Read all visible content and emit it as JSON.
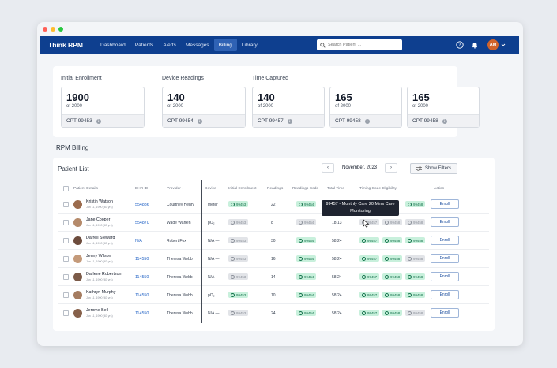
{
  "app": {
    "brand": "Think RPM",
    "nav": [
      "Dashboard",
      "Patients",
      "Alerts",
      "Messages",
      "Billing",
      "Library"
    ],
    "active_nav": "Billing",
    "search_placeholder": "Search Patient ...",
    "user_initials": "AM",
    "icons": [
      "help-icon",
      "bell-icon",
      "chevron-down-icon"
    ]
  },
  "summary": {
    "groups": [
      "Initial Enrollment",
      "Device Readings",
      "Time Captured"
    ],
    "cards": [
      {
        "value": "1900",
        "sub": "of 2000",
        "cpt": "CPT 99453"
      },
      {
        "value": "140",
        "sub": "of 2000",
        "cpt": "CPT 99454"
      },
      {
        "value": "140",
        "sub": "of 2000",
        "cpt": "CPT 99457"
      },
      {
        "value": "165",
        "sub": "of 2000",
        "cpt": "CPT 99458"
      },
      {
        "value": "165",
        "sub": "of 2000",
        "cpt": "CPT 99458"
      }
    ],
    "info_glyph": "i"
  },
  "billing": {
    "section_title": "RPM Billing",
    "list_title": "Patient List",
    "month": "November, 2023",
    "prev": "‹",
    "next": "›",
    "show_filters": "Show Filters",
    "columns": [
      "Patient Details",
      "EHR ID",
      "Provider",
      "Device",
      "Initial Enrollment",
      "Readings",
      "Readings Code",
      "Total Time",
      "Timing Code Eligibility",
      "Action"
    ],
    "tooltip_line1": "99457 - Monthly Care 20 Mins Care",
    "tooltip_line2": "Monitoring",
    "rows": [
      {
        "name": "Kristin Watson",
        "dob": "Jan 11, 1990 (83 yrs)",
        "ehr": "554886",
        "provider": "Courtney Henry",
        "device": "meter",
        "enroll": "99453",
        "enroll_state": "green",
        "readings": "22",
        "rcode": "99454",
        "rcode_state": "green",
        "time": "",
        "t1": "",
        "t1_state": "",
        "t2": "",
        "t2_state": "",
        "t3": "99458",
        "t3_state": "green",
        "action": "Enroll"
      },
      {
        "name": "Jane Cooper",
        "dob": "Jan 11, 1990 (83 yrs)",
        "ehr": "554870",
        "provider": "Wade Warren",
        "device": "pO₂",
        "enroll": "99453",
        "enroll_state": "gray",
        "readings": "8",
        "rcode": "99454",
        "rcode_state": "gray",
        "time": "18:13",
        "t1": "99457",
        "t1_state": "gray",
        "t2": "99458",
        "t2_state": "gray",
        "t3": "99458",
        "t3_state": "gray",
        "action": "Enroll"
      },
      {
        "name": "Darrell Steward",
        "dob": "Jan 11, 1990 (83 yrs)",
        "ehr": "N/A",
        "provider": "Robert Fox",
        "device": "N/A —",
        "enroll": "99453",
        "enroll_state": "gray",
        "readings": "30",
        "rcode": "99454",
        "rcode_state": "green",
        "time": "58:24",
        "t1": "99457",
        "t1_state": "green",
        "t2": "99458",
        "t2_state": "green",
        "t3": "99458",
        "t3_state": "green",
        "action": "Enroll"
      },
      {
        "name": "Jenny Wilson",
        "dob": "Jan 11, 1990 (83 yrs)",
        "ehr": "114550",
        "provider": "Theresa Webb",
        "device": "N/A —",
        "enroll": "99453",
        "enroll_state": "gray",
        "readings": "16",
        "rcode": "99454",
        "rcode_state": "green",
        "time": "58:24",
        "t1": "99457",
        "t1_state": "green",
        "t2": "99458",
        "t2_state": "green",
        "t3": "99458",
        "t3_state": "gray",
        "action": "Enroll"
      },
      {
        "name": "Darlene Robertson",
        "dob": "Jan 11, 1990 (83 yrs)",
        "ehr": "114550",
        "provider": "Theresa Webb",
        "device": "N/A —",
        "enroll": "99453",
        "enroll_state": "gray",
        "readings": "14",
        "rcode": "99454",
        "rcode_state": "green",
        "time": "58:24",
        "t1": "99457",
        "t1_state": "green",
        "t2": "99458",
        "t2_state": "green",
        "t3": "99458",
        "t3_state": "green",
        "action": "Enroll"
      },
      {
        "name": "Kathryn Murphy",
        "dob": "Jan 11, 1990 (83 yrs)",
        "ehr": "114550",
        "provider": "Theresa Webb",
        "device": "pO₂",
        "enroll": "99453",
        "enroll_state": "green",
        "readings": "10",
        "rcode": "99454",
        "rcode_state": "green",
        "time": "58:24",
        "t1": "99457",
        "t1_state": "green",
        "t2": "99458",
        "t2_state": "green",
        "t3": "99458",
        "t3_state": "green",
        "action": "Enroll"
      },
      {
        "name": "Jerome Bell",
        "dob": "Jan 11, 1990 (83 yrs)",
        "ehr": "114550",
        "provider": "Theresa Webb",
        "device": "N/A —",
        "enroll": "99453",
        "enroll_state": "gray",
        "readings": "24",
        "rcode": "99454",
        "rcode_state": "green",
        "time": "58:24",
        "t1": "99457",
        "t1_state": "green",
        "t2": "99458",
        "t2_state": "green",
        "t3": "99458",
        "t3_state": "gray",
        "action": "Enroll"
      }
    ]
  },
  "colors": {
    "nav_bg": "#0e3f8f",
    "accent": "#1d5fc4",
    "badge_green": "#c8f0dc",
    "badge_gray": "#e2e4e8"
  }
}
